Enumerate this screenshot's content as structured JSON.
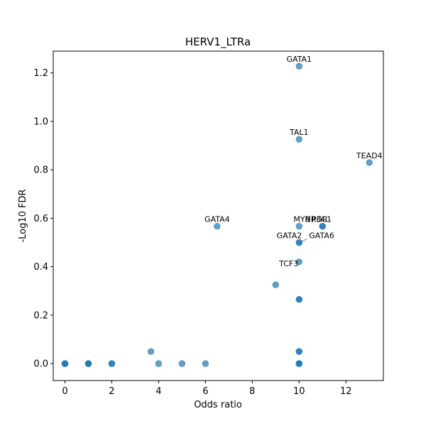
{
  "chart_data": {
    "type": "scatter",
    "title": "HERV1_LTRa",
    "xlabel": "Odds ratio",
    "ylabel": "-Log10 FDR",
    "xlim": [
      -0.5,
      13.6
    ],
    "ylim": [
      -0.07,
      1.29
    ],
    "xticks": [
      0,
      2,
      4,
      6,
      8,
      10,
      12
    ],
    "yticks": [
      0.0,
      0.2,
      0.4,
      0.6,
      0.8,
      1.0,
      1.2
    ],
    "xtick_labels": [
      "0",
      "2",
      "4",
      "6",
      "8",
      "10",
      "12"
    ],
    "ytick_labels": [
      "0.0",
      "0.2",
      "0.4",
      "0.6",
      "0.8",
      "1.0",
      "1.2"
    ],
    "grid": false,
    "point_color": "#1f77b4",
    "points": [
      {
        "x": 0,
        "y": 0.0
      },
      {
        "x": 0,
        "y": 0.0
      },
      {
        "x": 0,
        "y": 0.0
      },
      {
        "x": 1,
        "y": 0.0
      },
      {
        "x": 1,
        "y": 0.0
      },
      {
        "x": 1,
        "y": 0.0
      },
      {
        "x": 2,
        "y": 0.0
      },
      {
        "x": 2,
        "y": 0.0
      },
      {
        "x": 3.67,
        "y": 0.05
      },
      {
        "x": 4,
        "y": 0.0
      },
      {
        "x": 5,
        "y": 0.0
      },
      {
        "x": 6,
        "y": 0.0
      },
      {
        "x": 6.5,
        "y": 0.567
      },
      {
        "x": 9,
        "y": 0.325
      },
      {
        "x": 10,
        "y": 1.228
      },
      {
        "x": 10,
        "y": 0.926
      },
      {
        "x": 10,
        "y": 0.567
      },
      {
        "x": 10,
        "y": 0.5
      },
      {
        "x": 10,
        "y": 0.5
      },
      {
        "x": 10,
        "y": 0.42
      },
      {
        "x": 10,
        "y": 0.265
      },
      {
        "x": 10,
        "y": 0.265
      },
      {
        "x": 10,
        "y": 0.05
      },
      {
        "x": 10,
        "y": 0.05
      },
      {
        "x": 10,
        "y": 0.0
      },
      {
        "x": 10,
        "y": 0.0
      },
      {
        "x": 10,
        "y": 0.0
      },
      {
        "x": 11,
        "y": 0.567
      },
      {
        "x": 11,
        "y": 0.567
      },
      {
        "x": 13,
        "y": 0.83
      }
    ],
    "annotations": [
      {
        "text": "GATA1",
        "x": 10,
        "y": 1.228,
        "anchor": "middle",
        "dx": 0,
        "dy": -6
      },
      {
        "text": "TAL1",
        "x": 10,
        "y": 0.926,
        "anchor": "middle",
        "dx": 0,
        "dy": -6
      },
      {
        "text": "TEAD4",
        "x": 13,
        "y": 0.83,
        "anchor": "middle",
        "dx": 0,
        "dy": -6
      },
      {
        "text": "GATA4",
        "x": 6.5,
        "y": 0.567,
        "anchor": "middle",
        "dx": 0,
        "dy": -6
      },
      {
        "text": "MYB",
        "x": 10,
        "y": 0.567,
        "anchor": "middle",
        "dx": 4,
        "dy": -6
      },
      {
        "text": "NR3C1",
        "x": 11,
        "y": 0.567,
        "anchor": "middle",
        "dx": -6,
        "dy": -6
      },
      {
        "text": "PGR",
        "x": 11,
        "y": 0.567,
        "anchor": "middle",
        "dx": -4,
        "dy": -6
      },
      {
        "text": "GATA2",
        "x": 10,
        "y": 0.5,
        "anchor": "end",
        "dx": 4,
        "dy": -6
      },
      {
        "text": "GATA6",
        "x": 10,
        "y": 0.5,
        "anchor": "start",
        "dx": 14,
        "dy": -6
      },
      {
        "text": "TCF3",
        "x": 10,
        "y": 0.42,
        "anchor": "end",
        "dx": -1,
        "dy": 6
      }
    ]
  }
}
